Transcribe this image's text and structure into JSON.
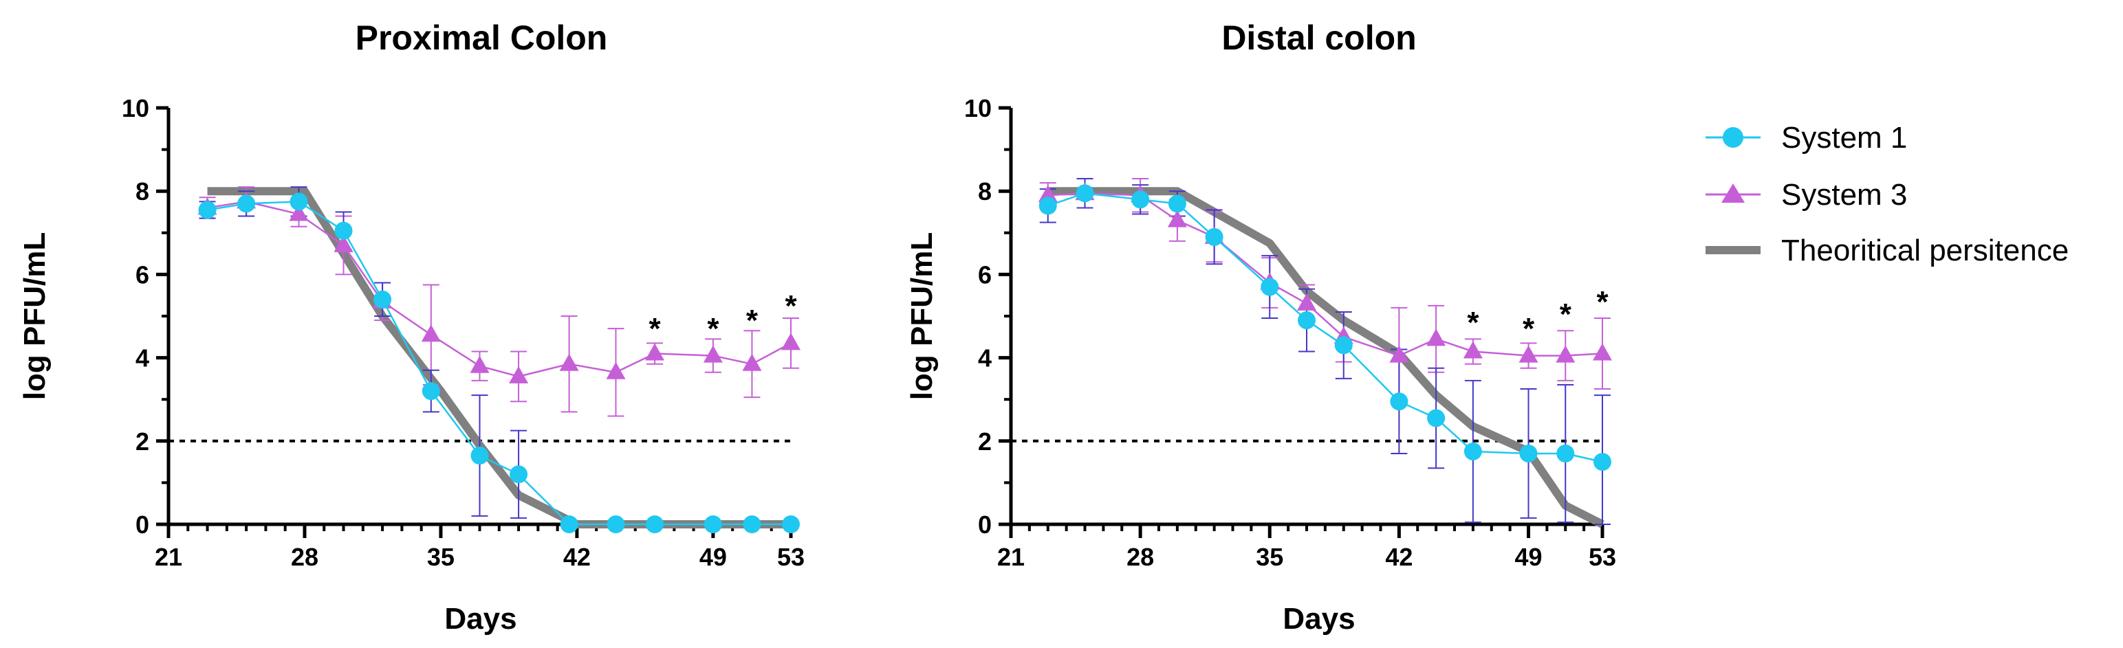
{
  "legend": {
    "position": "right",
    "entries": [
      {
        "key": "s1",
        "label": "System 1"
      },
      {
        "key": "s3",
        "label": "System 3"
      },
      {
        "key": "theo",
        "label": "Theoritical persitence"
      }
    ]
  },
  "colors": {
    "system1": "#1ec8f0",
    "system1_err": "#4338c8",
    "system3": "#c65fd7",
    "theoretical": "#808080",
    "axis": "#000000"
  },
  "chart_data": [
    {
      "type": "line",
      "title": "Proximal Colon",
      "xlabel": "Days",
      "ylabel": "log PFU/mL",
      "xlim": [
        21,
        53
      ],
      "ylim": [
        0,
        10
      ],
      "xticks": [
        21,
        28,
        35,
        42,
        49,
        53
      ],
      "yticks": [
        0,
        2,
        4,
        6,
        8,
        10
      ],
      "threshold": 2,
      "series": [
        {
          "name": "System 1",
          "key": "s1",
          "marker": "circle",
          "x": [
            23,
            25,
            27.7,
            30,
            32,
            34.5,
            37,
            39,
            41.6,
            44,
            46,
            49,
            51,
            53
          ],
          "y": [
            7.55,
            7.7,
            7.75,
            7.05,
            5.4,
            3.2,
            1.65,
            1.2,
            0,
            0,
            0,
            0,
            0,
            0
          ],
          "err": [
            0.2,
            0.3,
            0.35,
            0.45,
            0.4,
            0.5,
            1.45,
            1.05,
            0,
            0,
            0,
            0,
            0,
            0
          ]
        },
        {
          "name": "System 3",
          "key": "s3",
          "marker": "triangle",
          "x": [
            23,
            25,
            27.7,
            30,
            32,
            34.5,
            37,
            39,
            41.6,
            44,
            46,
            49,
            51,
            53
          ],
          "y": [
            7.6,
            7.75,
            7.45,
            6.7,
            5.35,
            4.55,
            3.8,
            3.55,
            3.85,
            3.65,
            4.1,
            4.05,
            3.85,
            4.35
          ],
          "err": [
            0.25,
            0.35,
            0.3,
            0.7,
            0.45,
            1.2,
            0.35,
            0.6,
            1.15,
            1.05,
            0.25,
            0.4,
            0.8,
            0.6
          ]
        },
        {
          "name": "Theoritical persitence",
          "key": "theo",
          "marker": "none",
          "x": [
            23,
            25,
            28,
            30,
            32,
            35,
            37,
            39,
            42,
            44,
            46,
            49,
            51,
            53
          ],
          "y": [
            8,
            8,
            8,
            6.5,
            5,
            3.2,
            1.9,
            0.7,
            0,
            0,
            0,
            0,
            0,
            0
          ]
        }
      ],
      "annotations": [
        {
          "text": "*",
          "x": 46,
          "y": 4.75
        },
        {
          "text": "*",
          "x": 49,
          "y": 4.75
        },
        {
          "text": "*",
          "x": 51,
          "y": 4.95
        },
        {
          "text": "*",
          "x": 53,
          "y": 5.3
        }
      ]
    },
    {
      "type": "line",
      "title": "Distal colon",
      "xlabel": "Days",
      "ylabel": "log PFU/mL",
      "xlim": [
        21,
        53
      ],
      "ylim": [
        0,
        10
      ],
      "xticks": [
        21,
        28,
        35,
        42,
        49,
        53
      ],
      "yticks": [
        0,
        2,
        4,
        6,
        8,
        10
      ],
      "threshold": 2,
      "series": [
        {
          "name": "System 1",
          "key": "s1",
          "marker": "circle",
          "x": [
            23,
            25,
            28,
            30,
            32,
            35,
            37,
            39,
            42,
            44,
            46,
            49,
            51,
            53
          ],
          "y": [
            7.65,
            7.95,
            7.8,
            7.7,
            6.9,
            5.7,
            4.9,
            4.3,
            2.95,
            2.55,
            1.75,
            1.7,
            1.7,
            1.5
          ],
          "err": [
            0.4,
            0.35,
            0.35,
            0.3,
            0.65,
            0.75,
            0.75,
            0.8,
            1.25,
            1.2,
            1.7,
            1.55,
            1.65,
            1.6
          ]
        },
        {
          "name": "System 3",
          "key": "s3",
          "marker": "triangle",
          "x": [
            23,
            25,
            28,
            30,
            32,
            35,
            37,
            39,
            42,
            44,
            46,
            49,
            51,
            53
          ],
          "y": [
            7.9,
            7.95,
            7.9,
            7.3,
            6.9,
            5.8,
            5.3,
            4.5,
            4.05,
            4.45,
            4.15,
            4.05,
            4.05,
            4.1
          ],
          "err": [
            0.3,
            0.35,
            0.4,
            0.5,
            0.6,
            0.6,
            0.45,
            0.6,
            1.15,
            0.8,
            0.3,
            0.3,
            0.6,
            0.85
          ]
        },
        {
          "name": "Theoritical persitence",
          "key": "theo",
          "marker": "none",
          "x": [
            23,
            25,
            28,
            30,
            32,
            35,
            37,
            39,
            42,
            44,
            46,
            49,
            51,
            53
          ],
          "y": [
            8,
            8,
            8,
            8,
            7.5,
            6.75,
            5.6,
            4.9,
            4.1,
            3.1,
            2.35,
            1.75,
            0.45,
            0
          ],
          "err": []
        }
      ],
      "annotations": [
        {
          "text": "*",
          "x": 46,
          "y": 4.9
        },
        {
          "text": "*",
          "x": 49,
          "y": 4.75
        },
        {
          "text": "*",
          "x": 51,
          "y": 5.1
        },
        {
          "text": "*",
          "x": 53,
          "y": 5.4
        }
      ]
    }
  ]
}
